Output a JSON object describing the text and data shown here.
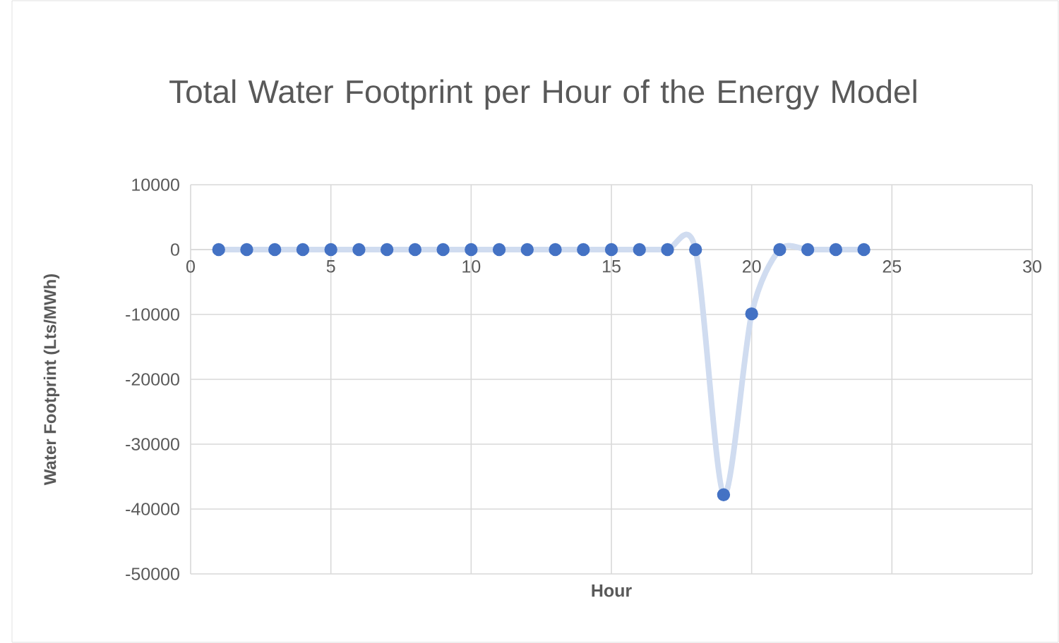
{
  "chart_data": {
    "type": "line",
    "title": "Total Water Footprint per Hour of the Energy Model",
    "xlabel": "Hour",
    "ylabel": "Water Footprint  (Lts/MWh)",
    "x": [
      1,
      2,
      3,
      4,
      5,
      6,
      7,
      8,
      9,
      10,
      11,
      12,
      13,
      14,
      15,
      16,
      17,
      18,
      19,
      20,
      21,
      22,
      23,
      24
    ],
    "series": [
      {
        "color": "#4472c4",
        "values": [
          0,
          0,
          0,
          0,
          0,
          0,
          0,
          0,
          0,
          0,
          0,
          0,
          0,
          0,
          0,
          0,
          0,
          0,
          -37800,
          -9900,
          0,
          0,
          0,
          0
        ]
      }
    ],
    "xlim": [
      0,
      30
    ],
    "xticks": [
      0,
      5,
      10,
      15,
      20,
      25,
      30
    ],
    "ylim": [
      -50000,
      10000
    ],
    "yticks": [
      -50000,
      -40000,
      -30000,
      -20000,
      -10000,
      0,
      10000
    ],
    "grid": true,
    "marker": "circle",
    "line_style": "solid"
  }
}
